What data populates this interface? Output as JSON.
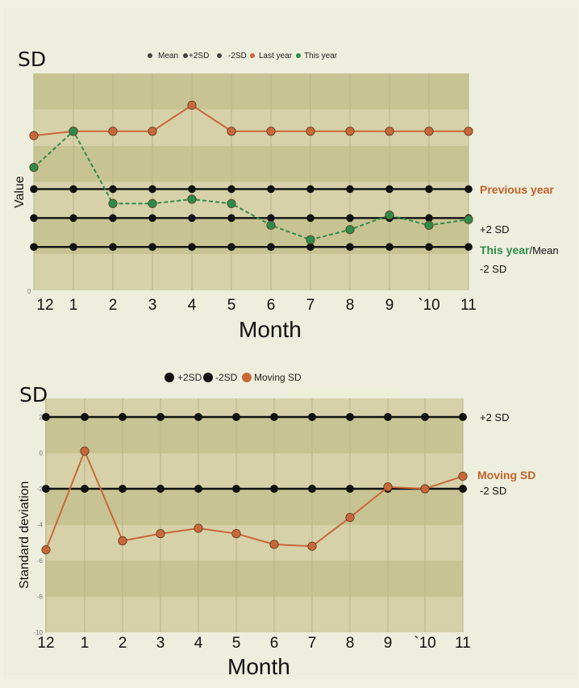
{
  "colors": {
    "band_dark": "#c8c393",
    "band_light": "#d6d1a8",
    "black_line": "#111111",
    "orange": "#c8683a",
    "green": "#2e8b4a",
    "grid": "#b9b48a"
  },
  "chart_data": [
    {
      "type": "line",
      "title": "SD",
      "xlabel": "Month",
      "ylabel": "Value",
      "categories": [
        "12",
        "1",
        "2",
        "3",
        "4",
        "5",
        "6",
        "7",
        "8",
        "9",
        "`10",
        "11"
      ],
      "y_tick_labels": [
        "0"
      ],
      "legend_position": "top",
      "legend": [
        "Mean",
        "+2SD",
        "-2SD",
        "Last year",
        "This year"
      ],
      "series": [
        {
          "name": "+2SD",
          "color": "#111111",
          "values": [
            7,
            7,
            7,
            7,
            7,
            7,
            7,
            7,
            7,
            7,
            7,
            7
          ]
        },
        {
          "name": "Mean",
          "color": "#111111",
          "values": [
            5,
            5,
            5,
            5,
            5,
            5,
            5,
            5,
            5,
            5,
            5,
            5
          ]
        },
        {
          "name": "-2SD",
          "color": "#111111",
          "values": [
            3,
            3,
            3,
            3,
            3,
            3,
            3,
            3,
            3,
            3,
            3,
            3
          ]
        },
        {
          "name": "Last year",
          "color": "#c8683a",
          "values": [
            10.7,
            11.0,
            11.0,
            11.0,
            12.8,
            11.0,
            11.0,
            11.0,
            11.0,
            11.0,
            11.0,
            11.0
          ]
        },
        {
          "name": "This year",
          "color": "#2e8b4a",
          "values": [
            8.5,
            11.0,
            6.0,
            6.0,
            6.3,
            6.0,
            4.5,
            3.5,
            4.2,
            5.2,
            4.5,
            4.9
          ]
        }
      ],
      "right_labels": {
        "previous_year": "Previous year",
        "plus_2sd": "+2 SD",
        "this_year": "This year",
        "mean": "/Mean",
        "minus_2sd": "-2 SD"
      }
    },
    {
      "type": "line",
      "title": "SD",
      "xlabel": "Month",
      "ylabel": "Standard deviation",
      "categories": [
        "12",
        "1",
        "2",
        "3",
        "4",
        "5",
        "6",
        "7",
        "8",
        "9",
        "`10",
        "11"
      ],
      "y_tick_labels": [
        "2",
        "0",
        "-2",
        "-4",
        "-6",
        "-8",
        "-10"
      ],
      "ylim": [
        -10,
        2
      ],
      "legend_position": "top",
      "legend": [
        "+2SD",
        "-2SD",
        "Moving SD"
      ],
      "series": [
        {
          "name": "+2SD",
          "color": "#111111",
          "values": [
            2,
            2,
            2,
            2,
            2,
            2,
            2,
            2,
            2,
            2,
            2,
            2
          ]
        },
        {
          "name": "-2SD",
          "color": "#111111",
          "values": [
            -2,
            -2,
            -2,
            -2,
            -2,
            -2,
            -2,
            -2,
            -2,
            -2,
            -2,
            -2
          ]
        },
        {
          "name": "Moving SD",
          "color": "#c8683a",
          "values": [
            -5.4,
            0.1,
            -4.9,
            -4.5,
            -4.2,
            -4.5,
            -5.1,
            -5.2,
            -3.6,
            -1.9,
            -2.0,
            -1.3
          ]
        }
      ],
      "right_labels": {
        "plus_2sd": "+2 SD",
        "moving_sd": "Moving SD",
        "minus_2sd": "-2 SD"
      }
    }
  ]
}
